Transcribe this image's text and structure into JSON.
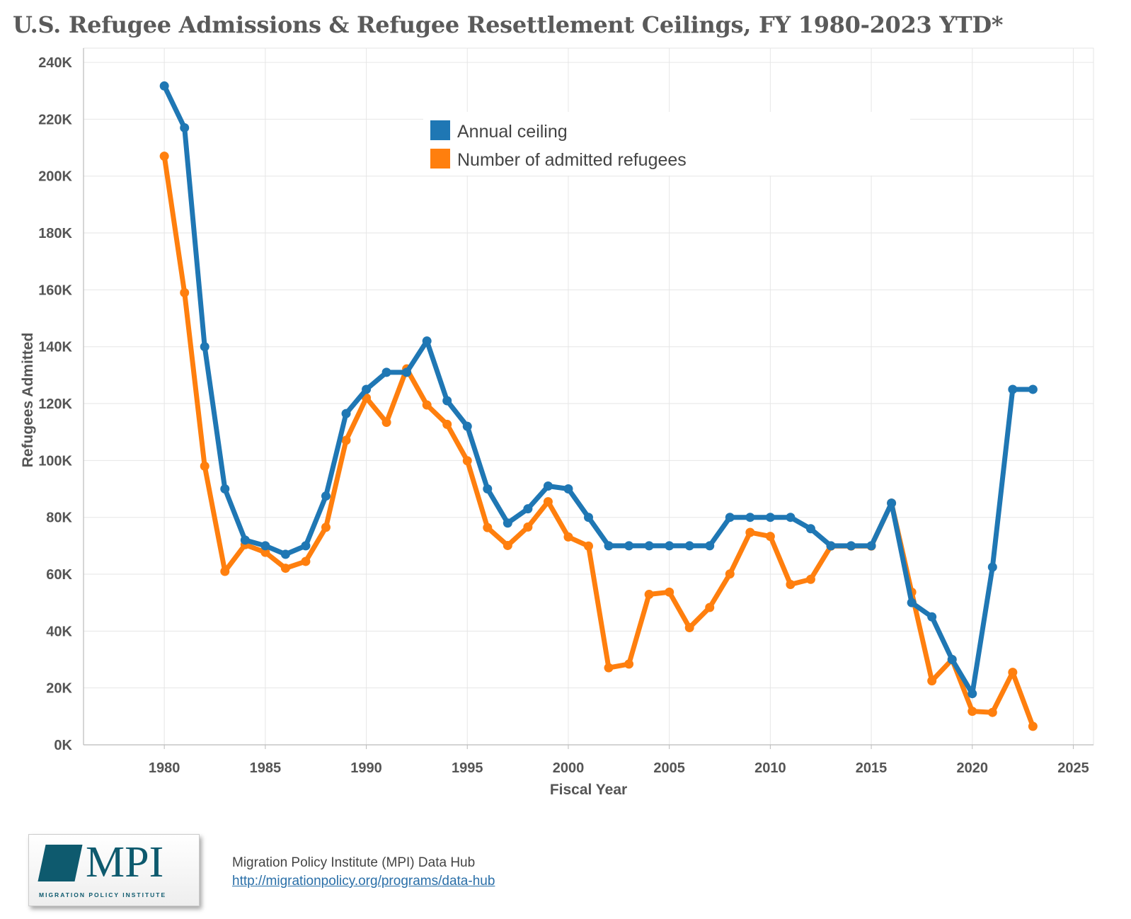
{
  "title": "U.S. Refugee Admissions & Refugee Resettlement Ceilings, FY 1980-2023 YTD*",
  "footer": {
    "source": "Migration Policy Institute (MPI) Data Hub",
    "link": "http://migrationpolicy.org/programs/data-hub"
  },
  "logo": {
    "text": "MPI",
    "subtitle": "MIGRATION POLICY INSTITUTE",
    "icon": "mpi-logo-mark-icon"
  },
  "colors": {
    "ceiling": "#1f77b4",
    "admitted": "#ff7f0e",
    "grid": "#e6e6e6"
  },
  "chart_data": {
    "type": "line",
    "title": "U.S. Refugee Admissions & Refugee Resettlement Ceilings, FY 1980-2023 YTD*",
    "xlabel": "Fiscal Year",
    "ylabel": "Refugees Admitted",
    "xlim": [
      1976,
      2026
    ],
    "ylim": [
      0,
      245000
    ],
    "x_ticks": [
      1980,
      1985,
      1990,
      1995,
      2000,
      2005,
      2010,
      2015,
      2020,
      2025
    ],
    "y_ticks": [
      0,
      20000,
      40000,
      60000,
      80000,
      100000,
      120000,
      140000,
      160000,
      180000,
      200000,
      220000,
      240000
    ],
    "y_tick_labels": [
      "0K",
      "20K",
      "40K",
      "60K",
      "80K",
      "100K",
      "120K",
      "140K",
      "160K",
      "180K",
      "200K",
      "220K",
      "240K"
    ],
    "grid": true,
    "legend_position": "top-center",
    "x": [
      1980,
      1981,
      1982,
      1983,
      1984,
      1985,
      1986,
      1987,
      1988,
      1989,
      1990,
      1991,
      1992,
      1993,
      1994,
      1995,
      1996,
      1997,
      1998,
      1999,
      2000,
      2001,
      2002,
      2003,
      2004,
      2005,
      2006,
      2007,
      2008,
      2009,
      2010,
      2011,
      2012,
      2013,
      2014,
      2015,
      2016,
      2017,
      2018,
      2019,
      2020,
      2021,
      2022,
      2023
    ],
    "series": [
      {
        "name": "Annual ceiling",
        "color": "#1f77b4",
        "values": [
          231700,
          217000,
          140000,
          90000,
          72000,
          70000,
          67000,
          70000,
          87500,
          116500,
          125000,
          131000,
          131000,
          142000,
          121000,
          112000,
          90000,
          78000,
          83000,
          91000,
          90000,
          80000,
          70000,
          70000,
          70000,
          70000,
          70000,
          70000,
          80000,
          80000,
          80000,
          80000,
          76000,
          70000,
          70000,
          70000,
          85000,
          50000,
          45000,
          30000,
          18000,
          62500,
          125000,
          125000
        ]
      },
      {
        "name": "Number of admitted refugees",
        "color": "#ff7f0e",
        "values": [
          207000,
          159000,
          98000,
          61000,
          70400,
          67700,
          62100,
          64500,
          76500,
          107100,
          122000,
          113400,
          132200,
          119500,
          112700,
          99900,
          76400,
          70100,
          76600,
          85500,
          73100,
          69900,
          27100,
          28400,
          52900,
          53700,
          41200,
          48300,
          60100,
          74700,
          73300,
          56400,
          58200,
          69900,
          69900,
          69900,
          85000,
          53700,
          22500,
          30000,
          11800,
          11400,
          25500,
          6500
        ]
      }
    ]
  }
}
